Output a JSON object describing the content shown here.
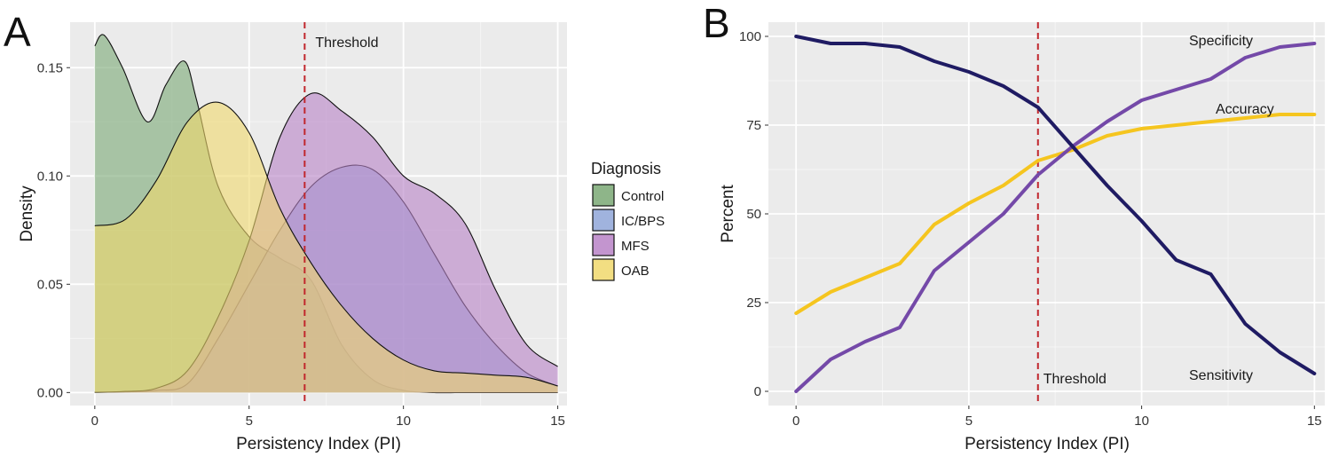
{
  "panels": {
    "a_label": "A",
    "b_label": "B"
  },
  "chart_data": [
    {
      "type": "area",
      "panel": "A",
      "xlabel": "Persistency Index (PI)",
      "ylabel": "Density",
      "xlim": [
        -0.8,
        15.3
      ],
      "ylim": [
        -0.006,
        0.171
      ],
      "xticks": [
        0,
        5,
        10,
        15
      ],
      "yticks": [
        0.0,
        0.05,
        0.1,
        0.15
      ],
      "ytick_labels": [
        "0.00",
        "0.05",
        "0.10",
        "0.15"
      ],
      "threshold": {
        "x": 6.8,
        "label": "Threshold"
      },
      "legend": {
        "title": "Diagnosis",
        "position": "right"
      },
      "series": [
        {
          "name": "Control",
          "color": "#7aa874",
          "x": [
            0,
            0.3,
            0.9,
            1.7,
            2.3,
            2.9,
            3.3,
            4,
            5,
            6,
            7,
            8,
            9,
            10,
            11,
            12,
            13,
            14,
            15
          ],
          "values": [
            0.16,
            0.165,
            0.15,
            0.125,
            0.142,
            0.153,
            0.135,
            0.095,
            0.072,
            0.062,
            0.052,
            0.022,
            0.006,
            0.001,
            0,
            0,
            0,
            0,
            0
          ]
        },
        {
          "name": "IC/BPS",
          "color": "#8fa6d8",
          "x": [
            0,
            1,
            2,
            3,
            4,
            5,
            6,
            7,
            8,
            9,
            10,
            11,
            12,
            13,
            14,
            15
          ],
          "values": [
            0.0001,
            0.0003,
            0.001,
            0.004,
            0.025,
            0.05,
            0.075,
            0.095,
            0.104,
            0.103,
            0.088,
            0.064,
            0.04,
            0.022,
            0.009,
            0.003
          ]
        },
        {
          "name": "MFS",
          "color": "#b882c7",
          "x": [
            0,
            1,
            2,
            3,
            4,
            5,
            6,
            7,
            8,
            9,
            10,
            11,
            12,
            13,
            14,
            15
          ],
          "values": [
            0.0001,
            0.0005,
            0.002,
            0.01,
            0.035,
            0.07,
            0.118,
            0.138,
            0.13,
            0.118,
            0.1,
            0.092,
            0.078,
            0.047,
            0.022,
            0.012
          ]
        },
        {
          "name": "OAB",
          "color": "#f0d86c",
          "x": [
            0,
            1,
            2,
            3,
            4,
            5,
            6,
            7,
            8,
            9,
            10,
            11,
            12,
            13,
            14,
            15
          ],
          "values": [
            0.077,
            0.08,
            0.098,
            0.125,
            0.134,
            0.12,
            0.085,
            0.06,
            0.04,
            0.025,
            0.015,
            0.01,
            0.009,
            0.008,
            0.007,
            0.003
          ]
        }
      ],
      "overlap_colors": {
        "control_oab": "#a7a86c",
        "mfs_oab": "#d9a1a1"
      }
    },
    {
      "type": "line",
      "panel": "B",
      "xlabel": "Persistency Index (PI)",
      "ylabel": "Percent",
      "xlim": [
        -0.8,
        15.3
      ],
      "ylim": [
        -4,
        104
      ],
      "xticks": [
        0,
        5,
        10,
        15
      ],
      "yticks": [
        0,
        25,
        50,
        75,
        100
      ],
      "threshold": {
        "x": 7,
        "label": "Threshold"
      },
      "x": [
        0,
        1,
        2,
        3,
        4,
        5,
        6,
        7,
        8,
        9,
        10,
        11,
        12,
        13,
        14,
        15
      ],
      "series": [
        {
          "name": "Sensitivity",
          "color": "#1f1b63",
          "values": [
            100,
            98,
            98,
            97,
            93,
            90,
            86,
            80,
            69,
            58,
            48,
            37,
            33,
            19,
            11,
            5
          ]
        },
        {
          "name": "Specificity",
          "color": "#7449a8",
          "values": [
            0,
            9,
            14,
            18,
            34,
            42,
            50,
            61,
            69,
            76,
            82,
            85,
            88,
            94,
            97,
            98
          ]
        },
        {
          "name": "Accuracy",
          "color": "#f5c51f",
          "values": [
            22,
            28,
            32,
            36,
            47,
            53,
            58,
            65,
            68,
            72,
            74,
            75,
            76,
            77,
            78,
            78
          ]
        }
      ]
    }
  ]
}
